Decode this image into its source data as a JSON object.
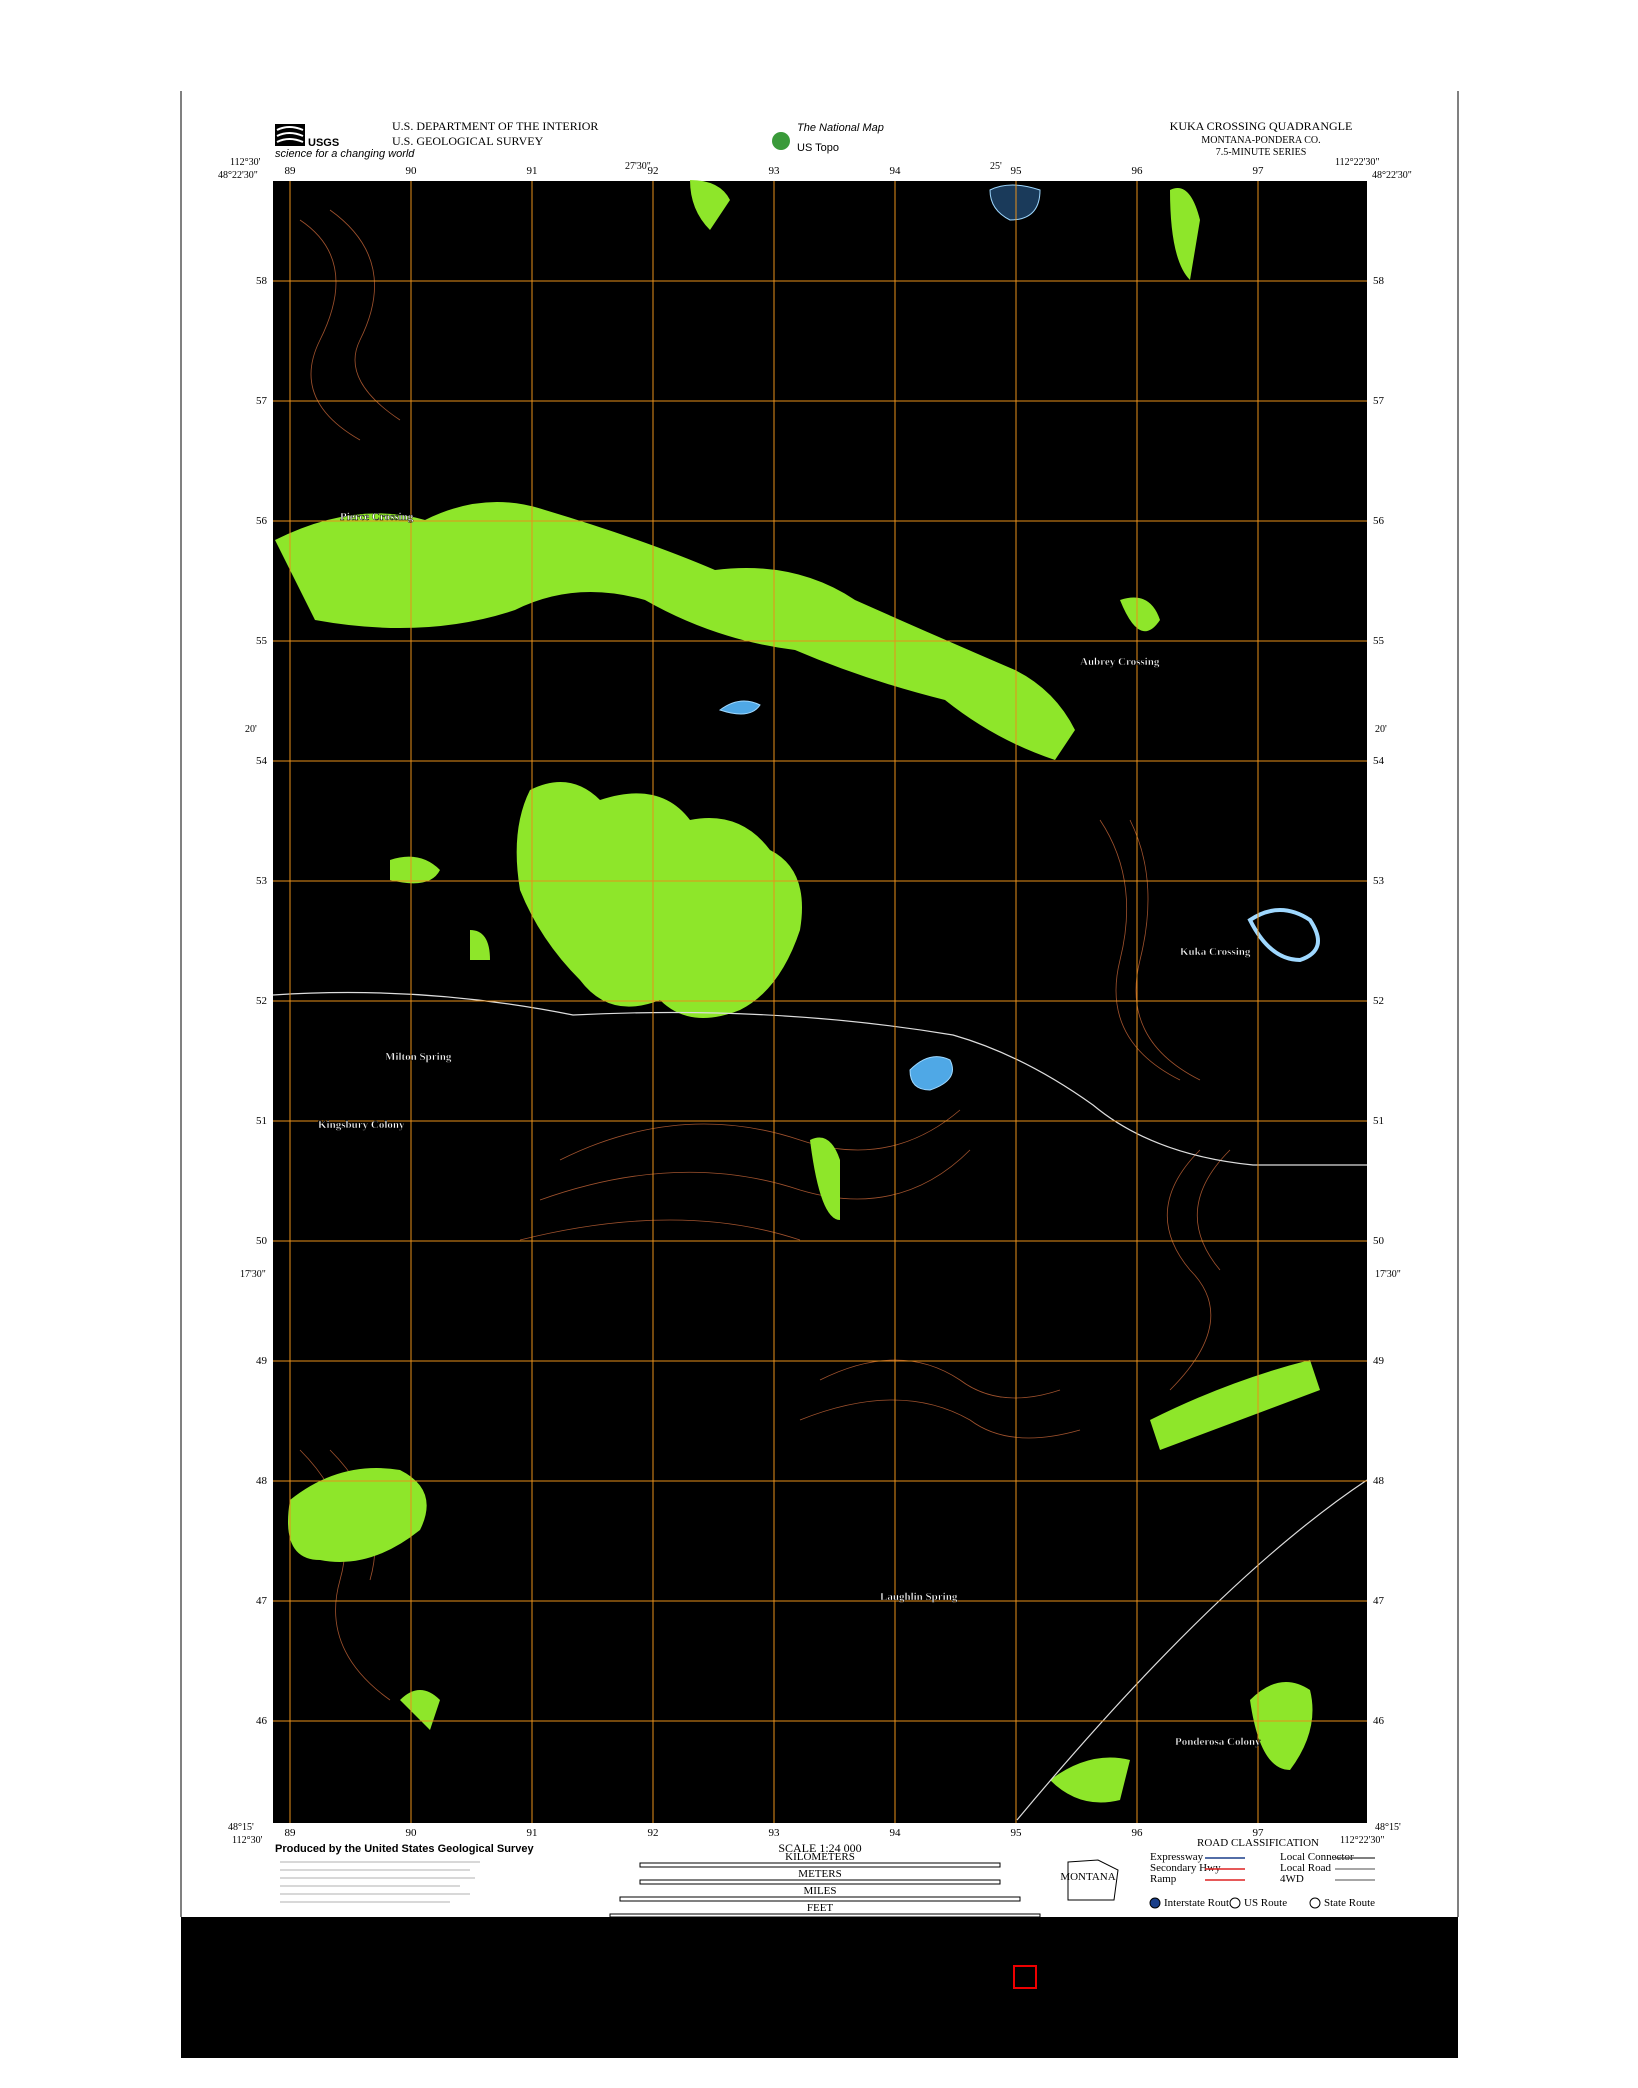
{
  "header": {
    "agency": "USGS",
    "agency_tagline": "science for a changing world",
    "department": "U.S. DEPARTMENT OF THE INTERIOR",
    "survey": "U.S. GEOLOGICAL SURVEY",
    "program": "The National Map",
    "product": "US Topo",
    "quadrangle": "KUKA CROSSING QUADRANGLE",
    "county": "MONTANA-PONDERA CO.",
    "series": "7.5-MINUTE SERIES"
  },
  "corners": {
    "top_left_lon": "112°30'",
    "top_left_lat": "48°22'30\"",
    "top_right_lon": "112°22'30\"",
    "top_right_lat": "48°22'30\"",
    "bottom_left_lat": "48°15'",
    "bottom_left_lon": "112°30'",
    "bottom_right_lat": "48°15'",
    "bottom_right_lon": "112°22'30\"",
    "top_mid_1": "27'30\"",
    "top_mid_2": "25'",
    "side_mid_1": "20'",
    "side_mid_2": "17'30\""
  },
  "grid": {
    "columns": [
      "89",
      "90",
      "91",
      "92",
      "93",
      "94",
      "95",
      "96",
      "97"
    ],
    "rows": [
      "58",
      "57",
      "56",
      "55",
      "54",
      "53",
      "52",
      "51",
      "50",
      "49",
      "48",
      "47",
      "46"
    ]
  },
  "places": [
    {
      "name": "Pierce Crossing"
    },
    {
      "name": "Aubrey Crossing"
    },
    {
      "name": "Kuka Crossing"
    },
    {
      "name": "Kingsbury Colony"
    },
    {
      "name": "Milton Spring"
    },
    {
      "name": "Ponderosa Colony"
    },
    {
      "name": "Laughlin Spring"
    }
  ],
  "footer": {
    "producer": "Produced by the United States Geological Survey",
    "scale": "SCALE 1:24 000",
    "kilometers": "KILOMETERS",
    "meters": "METERS",
    "miles": "MILES",
    "feet": "FEET",
    "road_title": "ROAD CLASSIFICATION",
    "roads": [
      "Expressway",
      "Secondary Hwy",
      "Ramp",
      "Local Connector",
      "Local Road",
      "4WD"
    ],
    "routes": [
      "Interstate Route",
      "US Route",
      "State Route"
    ],
    "state": "MONTANA"
  }
}
